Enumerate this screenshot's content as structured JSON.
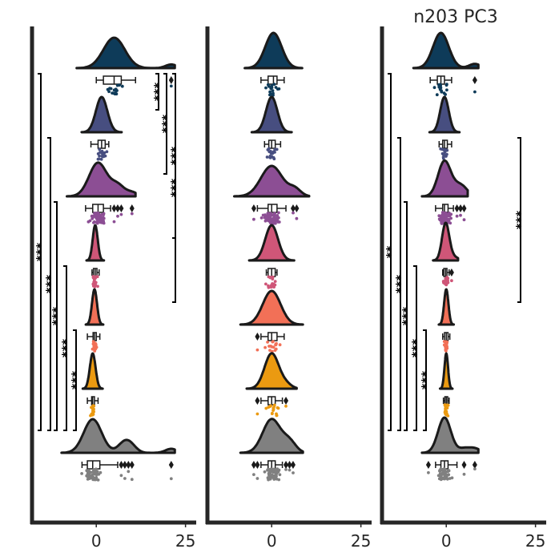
{
  "chart_data": {
    "type": "raincloud",
    "title": "n203 PC3",
    "x_ticks": [
      0,
      25
    ],
    "x_range": [
      -18,
      28
    ],
    "grid": false,
    "groups": [
      {
        "color": "#0e3b59"
      },
      {
        "color": "#474e80"
      },
      {
        "color": "#8c4e94"
      },
      {
        "color": "#cf5678"
      },
      {
        "color": "#f27057"
      },
      {
        "color": "#eb9a11"
      },
      {
        "color": "#808080"
      }
    ],
    "panels": [
      {
        "title": "",
        "groups": [
          {
            "median": 5.0,
            "q1": 2.0,
            "q3": 7.0,
            "wmin": 0.0,
            "wmax": 11.0,
            "spread": 3.0,
            "outliers": [
              21
            ]
          },
          {
            "median": 1.5,
            "q1": 0.5,
            "q3": 2.5,
            "wmin": -1.5,
            "wmax": 3.5,
            "spread": 1.6,
            "outliers": []
          },
          {
            "median": 0.5,
            "q1": -1.0,
            "q3": 2.0,
            "wmin": -3.0,
            "wmax": 4.0,
            "spread": 2.5,
            "outliers": [
              5,
              6,
              7,
              10
            ]
          },
          {
            "median": -0.3,
            "q1": -0.8,
            "q3": 0.2,
            "wmin": -1.2,
            "wmax": 0.8,
            "spread": 0.7,
            "outliers": []
          },
          {
            "median": -0.5,
            "q1": -0.9,
            "q3": 0.0,
            "wmin": -2.5,
            "wmax": 1.0,
            "spread": 0.7,
            "outliers": []
          },
          {
            "median": -1.0,
            "q1": -1.3,
            "q3": -0.5,
            "wmin": -2.5,
            "wmax": 0.5,
            "spread": 0.8,
            "outliers": []
          },
          {
            "median": -1.0,
            "q1": -2.5,
            "q3": 1.0,
            "wmin": -4.0,
            "wmax": 6.0,
            "spread": 2.5,
            "outliers": [
              7,
              8,
              9,
              10,
              21
            ]
          }
        ],
        "comparisons": [
          {
            "from": 0,
            "to": 6,
            "label": "***",
            "side": "left"
          },
          {
            "from": 1,
            "to": 6,
            "label": "***",
            "side": "left"
          },
          {
            "from": 2,
            "to": 6,
            "label": "***",
            "side": "left"
          },
          {
            "from": 3,
            "to": 6,
            "label": "***",
            "side": "left"
          },
          {
            "from": 4,
            "to": 6,
            "label": "***",
            "side": "left"
          },
          {
            "from": 0,
            "to": 1,
            "label": "***",
            "side": "right"
          },
          {
            "from": 0,
            "to": 2,
            "label": "***",
            "side": "right"
          },
          {
            "from": 0,
            "to": 3,
            "label": "***",
            "side": "right"
          },
          {
            "from": 0,
            "to": 4,
            "label": "***",
            "side": "right"
          }
        ]
      },
      {
        "title": "",
        "groups": [
          {
            "median": 0.5,
            "q1": -1.0,
            "q3": 1.5,
            "wmin": -3.0,
            "wmax": 3.5,
            "spread": 2.3,
            "outliers": []
          },
          {
            "median": 0.0,
            "q1": -0.8,
            "q3": 1.0,
            "wmin": -2.0,
            "wmax": 2.5,
            "spread": 1.6,
            "outliers": []
          },
          {
            "median": 0.0,
            "q1": -1.0,
            "q3": 1.5,
            "wmin": -4.0,
            "wmax": 4.0,
            "spread": 3.0,
            "outliers": [
              -5,
              6,
              7
            ]
          },
          {
            "median": 0.0,
            "q1": -1.0,
            "q3": 1.0,
            "wmin": -1.5,
            "wmax": 1.5,
            "spread": 1.8,
            "outliers": []
          },
          {
            "median": 0.0,
            "q1": -1.0,
            "q3": 1.5,
            "wmin": -3.0,
            "wmax": 3.5,
            "spread": 2.5,
            "outliers": [
              -4
            ]
          },
          {
            "median": 0.0,
            "q1": -1.0,
            "q3": 1.0,
            "wmin": -3.0,
            "wmax": 3.0,
            "spread": 2.0,
            "outliers": [
              -4,
              4
            ]
          },
          {
            "median": 0.0,
            "q1": -1.0,
            "q3": 1.0,
            "wmin": -3.0,
            "wmax": 3.0,
            "spread": 2.5,
            "outliers": [
              -5,
              -4,
              4,
              5,
              6
            ]
          }
        ],
        "comparisons": []
      },
      {
        "title": "n203 PC3",
        "groups": [
          {
            "median": -1.5,
            "q1": -2.5,
            "q3": -0.5,
            "wmin": -4.5,
            "wmax": 1.5,
            "spread": 2.2,
            "outliers": [
              8
            ]
          },
          {
            "median": -0.5,
            "q1": -1.0,
            "q3": 0.3,
            "wmin": -2.0,
            "wmax": 1.5,
            "spread": 1.2,
            "outliers": []
          },
          {
            "median": -0.5,
            "q1": -1.0,
            "q3": 0.5,
            "wmin": -3.0,
            "wmax": 2.0,
            "spread": 1.8,
            "outliers": [
              3,
              4,
              5
            ]
          },
          {
            "median": -0.2,
            "q1": -0.7,
            "q3": 0.2,
            "wmin": -1.0,
            "wmax": 0.8,
            "spread": 1.0,
            "outliers": [
              1.5
            ]
          },
          {
            "median": 0.0,
            "q1": -0.5,
            "q3": 0.5,
            "wmin": -1.0,
            "wmax": 1.0,
            "spread": 0.6,
            "outliers": []
          },
          {
            "median": 0.0,
            "q1": -0.4,
            "q3": 0.4,
            "wmin": -0.8,
            "wmax": 0.8,
            "spread": 0.5,
            "outliers": []
          },
          {
            "median": -0.5,
            "q1": -1.5,
            "q3": 0.5,
            "wmin": -3.0,
            "wmax": 3.0,
            "spread": 1.8,
            "outliers": [
              -5,
              5,
              8
            ]
          }
        ],
        "comparisons": [
          {
            "from": 0,
            "to": 6,
            "label": "**",
            "side": "left"
          },
          {
            "from": 1,
            "to": 6,
            "label": "***",
            "side": "left"
          },
          {
            "from": 2,
            "to": 6,
            "label": "***",
            "side": "left"
          },
          {
            "from": 3,
            "to": 6,
            "label": "***",
            "side": "left"
          },
          {
            "from": 4,
            "to": 6,
            "label": "***",
            "side": "left"
          },
          {
            "from": 1,
            "to": 4,
            "label": "***",
            "side": "right"
          }
        ]
      }
    ]
  }
}
